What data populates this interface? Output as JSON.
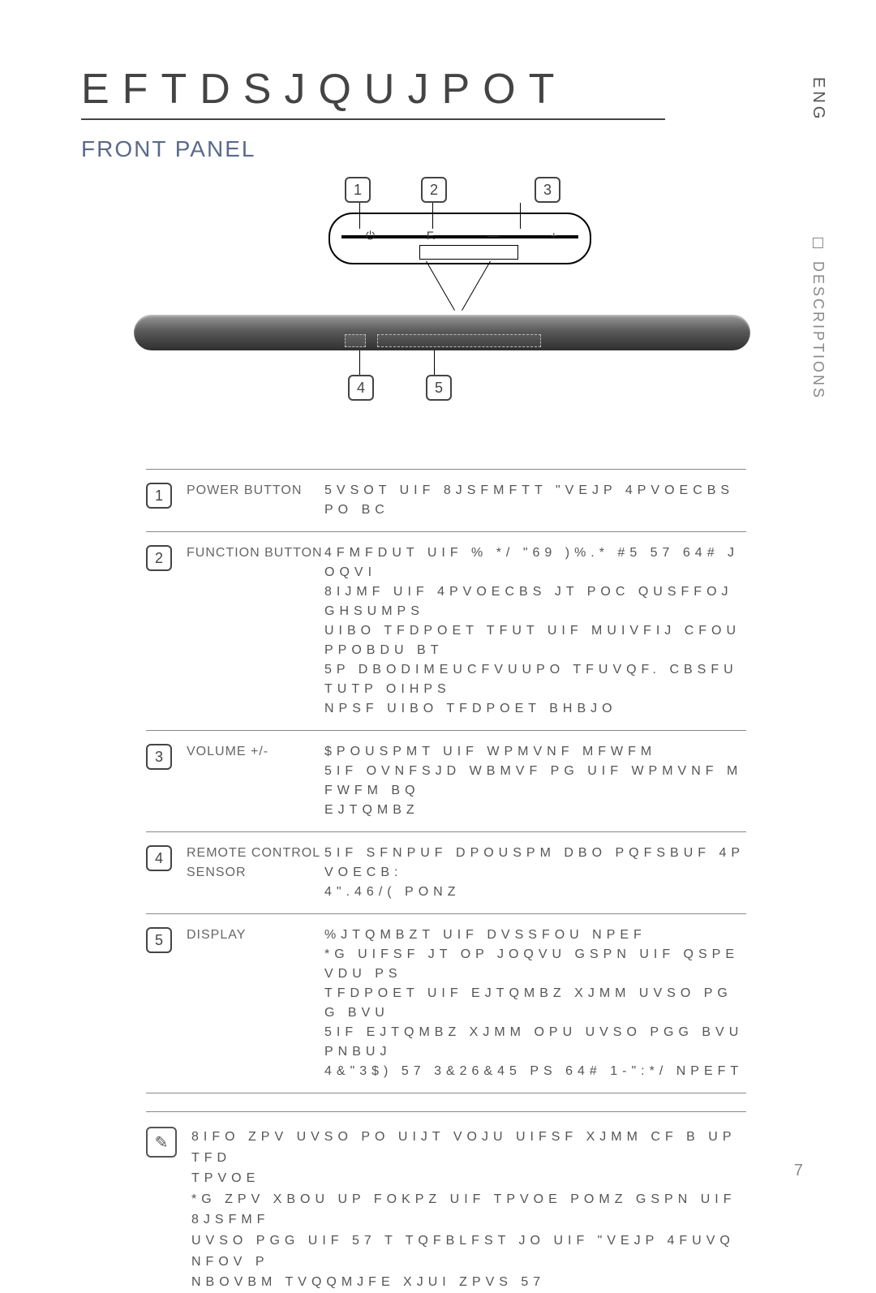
{
  "title": "EFTDSJQUJPOT",
  "subtitle": "FRONT PANEL",
  "side_lang": "ENG",
  "side_section": "☐ DESCRIPTIONS",
  "page_number": "7",
  "diagram": {
    "top_numbers": [
      "1",
      "2",
      "3"
    ],
    "bottom_numbers": [
      "4",
      "5"
    ],
    "control_symbols": [
      "⏻",
      "F.",
      "—",
      "+"
    ]
  },
  "table": [
    {
      "n": "1",
      "label": "POWER BUTTON",
      "desc": "5VSOT UIF 8JSFMFTT \"VEJP  4PVOECBS PO BC"
    },
    {
      "n": "2",
      "label": "FUNCTION BUTTON",
      "desc": "4FMFDUT UIF % */ \"69 )%.* #5 57 64# JOQVI\n8IJMF UIF 4PVOECBS JT POC QUSFFOJGHSUMPS\nUIBO  TFDPOET TFUT UIF MUIVFIJ CFOUPPOBDU BT\n5P DBODIMEUCFVUUPO TFUVQF. CBSFUTUTP OIHPS\nNPSF UIBO  TFDPOET BHBJO"
    },
    {
      "n": "3",
      "label": "VOLUME +/-",
      "desc": "$POUSPMT UIF WPMVNF MFWFM\n5IF OVNFSJD WBMVF PG UIF WPMVNF MFWFM BQ\nEJTQMBZ"
    },
    {
      "n": "4",
      "label": "REMOTE CONTROL SENSOR",
      "desc": "5IF SFNPUF DPOUSPM DBO PQFSBUF 4PVOECB:\n4\".46/( PONZ"
    },
    {
      "n": "5",
      "label": "DISPLAY",
      "desc": "%JTQMBZT UIF DVSSFOU NPEF\n*G UIFSF JT OP JOQVU GSPN UIF QSPEVDU PS\nTFDPOET  UIF EJTQMBZ XJMM UVSO PGG BVU\n5IF EJTQMBZ XJMM OPU UVSO PGG BVUPNBUJ\n4&\"3$) 57 3&26&45 PS 64# 1-\":*/ NPEFT"
    }
  ],
  "note": {
    "icon": "✎",
    "text": "8IFO ZPV UVSO PO UIJT VOJU  UIFSF XJMM CF B  UP  TFD\nTPVOE\n*G ZPV XBOU UP FOKPZ UIF TPVOE POMZ GSPN UIF 8JSFMF\nUVSO PGG UIF 57 T TQFBLFST JO UIF \"VEJP 4FUVQ NFOV P\nNBOVBM TVQQMJFE XJUI ZPVS 57"
  },
  "colors": {
    "title": "#444444",
    "subtitle": "#5a6a8a",
    "text": "#555555",
    "rule": "#888888",
    "bar_gradient": [
      "#9a9a9a",
      "#5a5a5a",
      "#2f2f2f"
    ]
  }
}
